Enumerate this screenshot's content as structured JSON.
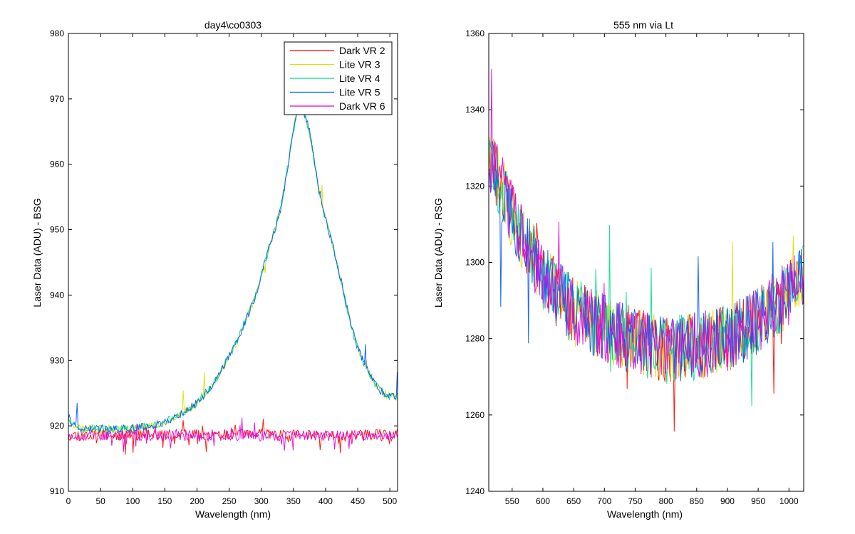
{
  "chart_data": [
    {
      "type": "line",
      "title": "day4\\co0303",
      "xlabel": "Wavelength (nm)",
      "ylabel": "Laser Data (ADU) - BSG",
      "xlim": [
        0,
        512
      ],
      "ylim": [
        910,
        980
      ],
      "xticks": [
        0,
        50,
        100,
        150,
        200,
        250,
        300,
        350,
        400,
        450,
        500
      ],
      "yticks": [
        910,
        920,
        930,
        940,
        950,
        960,
        970,
        980
      ],
      "legend_position": "top-right",
      "series": [
        {
          "name": "Dark VR 2",
          "color": "#ff0000",
          "profile": "flat",
          "base": 918.6,
          "noise": 0.9,
          "seed": 11
        },
        {
          "name": "Lite VR 3",
          "color": "#dddd00",
          "profile": "peak",
          "noise": 0.6,
          "seed": 23
        },
        {
          "name": "Lite VR 4",
          "color": "#00dd88",
          "profile": "peak",
          "noise": 0.6,
          "seed": 37
        },
        {
          "name": "Lite VR 5",
          "color": "#0055ff",
          "profile": "peak",
          "noise": 0.6,
          "seed": 41
        },
        {
          "name": "Dark VR 6",
          "color": "#dd00dd",
          "profile": "flat",
          "base": 918.5,
          "noise": 0.8,
          "seed": 53
        }
      ],
      "peak_points": {
        "x": [
          0,
          5,
          20,
          60,
          100,
          140,
          170,
          200,
          230,
          260,
          290,
          310,
          330,
          345,
          355,
          365,
          375,
          390,
          400,
          410,
          420,
          430,
          440,
          450,
          460,
          470,
          480,
          490,
          500,
          512
        ],
        "y": [
          921.5,
          920.5,
          919.6,
          919.5,
          919.6,
          920.2,
          921.5,
          923.5,
          927.0,
          932.5,
          939.5,
          946.5,
          953.0,
          962.0,
          968.0,
          968.5,
          965.0,
          956.0,
          951.5,
          948.0,
          944.0,
          939.5,
          935.0,
          932.0,
          929.5,
          927.5,
          926.0,
          925.0,
          924.5,
          924.5
        ]
      }
    },
    {
      "type": "line",
      "title": "555 nm via Lt",
      "xlabel": "Wavelength (nm)",
      "ylabel": "Laser Data (ADU) - RSG",
      "xlim": [
        512,
        1024
      ],
      "ylim": [
        1240,
        1360
      ],
      "xticks": [
        550,
        600,
        650,
        700,
        750,
        800,
        850,
        900,
        950,
        1000
      ],
      "yticks": [
        1240,
        1260,
        1280,
        1300,
        1320,
        1340,
        1360
      ],
      "series": [
        {
          "name": "",
          "color": "#ff0000",
          "seed": 61
        },
        {
          "name": "",
          "color": "#dddd00",
          "seed": 73
        },
        {
          "name": "",
          "color": "#00dd88",
          "seed": 89
        },
        {
          "name": "",
          "color": "#0055ff",
          "seed": 97
        },
        {
          "name": "",
          "color": "#dd00dd",
          "seed": 103
        }
      ],
      "trend": {
        "x": [
          512,
          550,
          600,
          650,
          700,
          750,
          800,
          850,
          900,
          950,
          1000,
          1024
        ],
        "y": [
          1328,
          1312,
          1296,
          1287,
          1283,
          1279,
          1277,
          1278,
          1280,
          1285,
          1292,
          1297
        ]
      },
      "noise": 9
    }
  ]
}
